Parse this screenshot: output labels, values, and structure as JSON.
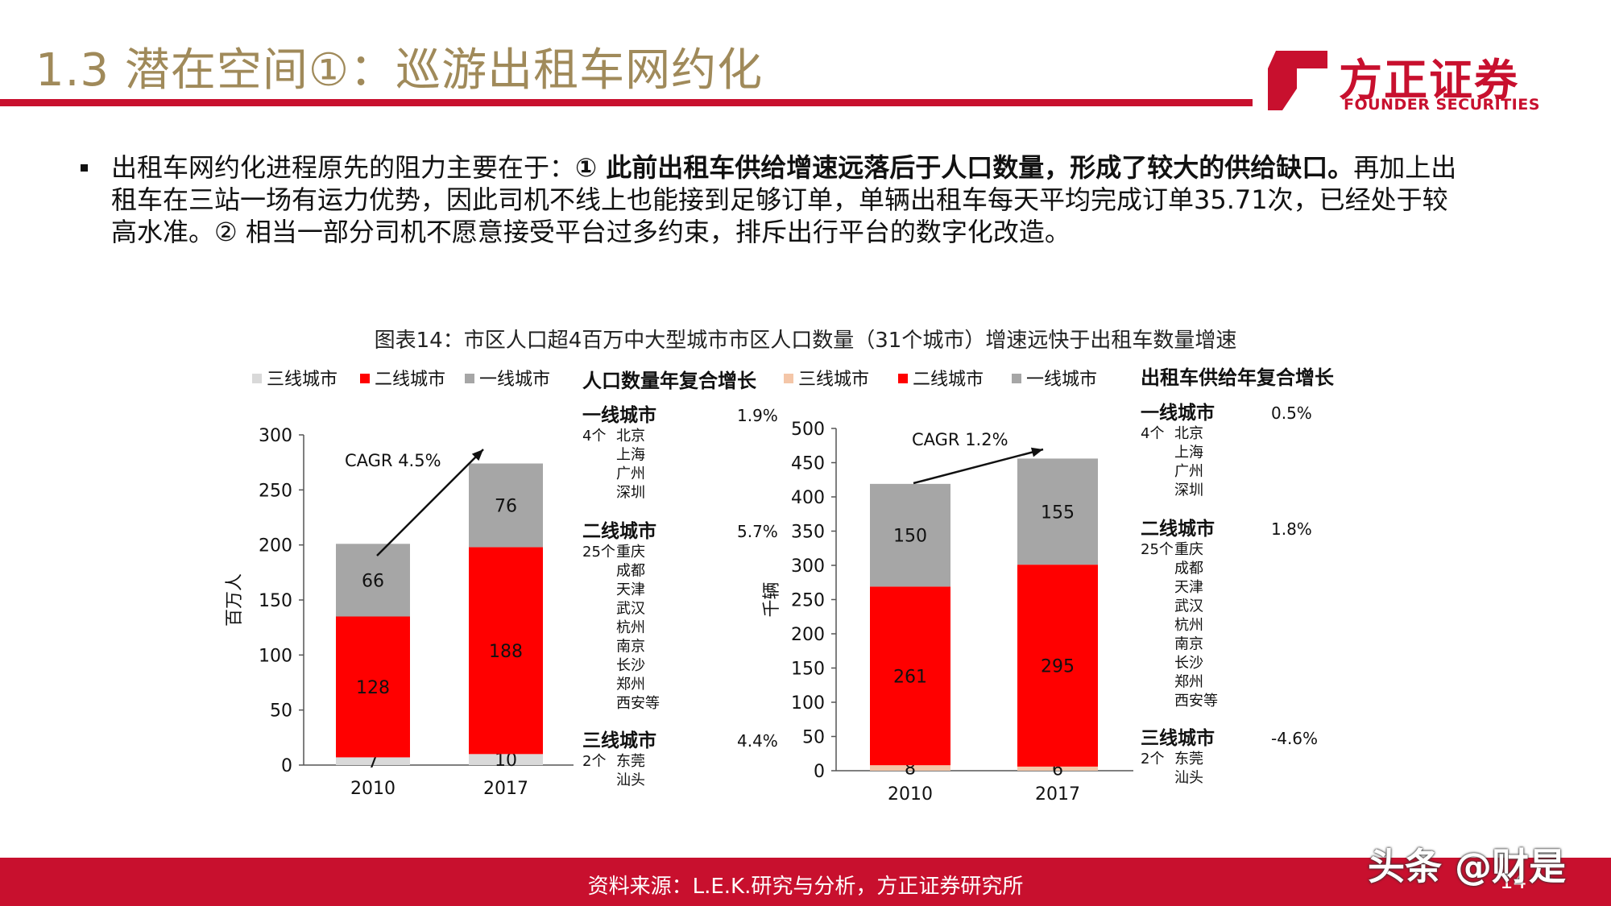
{
  "header": {
    "title": "1.3 潜在空间①：巡游出租车网约化",
    "logo_cn": "方正证券",
    "logo_en": "FOUNDER SECURITIES"
  },
  "bullet": {
    "part1": "出租车网约化进程原先的阻力主要在于：",
    "bold": "① 此前出租车供给增速远落后于人口数量，形成了较大的供给缺口。",
    "part2": "再加上出租车在三站一场有运力优势，因此司机不线上也能接到足够订单，单辆出租车每天平均完成订单35.71次，已经处于较高水准。② 相当一部分司机不愿意接受平台过多约束，排斥出行平台的数字化改造。"
  },
  "figure_title": "图表14：市区人口超4百万中大型城市市区人口数量（31个城市）增速远快于出租车数量增速",
  "colors": {
    "tier3_left": "#d9d9d9",
    "tier3_right": "#f4c6a8",
    "tier2": "#ff0000",
    "tier1": "#a6a6a6",
    "brand_red": "#c8102e"
  },
  "chart_data": [
    {
      "type": "bar",
      "stacked": true,
      "categories": [
        "2010",
        "2017"
      ],
      "series": [
        {
          "name": "三线城市",
          "values": [
            7,
            10
          ]
        },
        {
          "name": "二线城市",
          "values": [
            128,
            188
          ]
        },
        {
          "name": "一线城市",
          "values": [
            66,
            76
          ]
        }
      ],
      "ylabel": "百万人",
      "ylim": [
        0,
        300
      ],
      "yticks": [
        0,
        50,
        100,
        150,
        200,
        250,
        300
      ],
      "legend": [
        "三线城市",
        "二线城市",
        "一线城市"
      ],
      "legend_placement": "top",
      "annotation": "CAGR 4.5%",
      "grid": false,
      "side_table": {
        "title": "人口数量年复合增长",
        "groups": [
          {
            "tier": "一线城市",
            "rate": "1.9%",
            "count": "4个",
            "cities": [
              "北京",
              "上海",
              "广州",
              "深圳"
            ]
          },
          {
            "tier": "二线城市",
            "rate": "5.7%",
            "count": "25个",
            "cities": [
              "重庆",
              "成都",
              "天津",
              "武汉",
              "杭州",
              "南京",
              "长沙",
              "郑州",
              "西安等"
            ]
          },
          {
            "tier": "三线城市",
            "rate": "4.4%",
            "count": "2个",
            "cities": [
              "东莞",
              "汕头"
            ]
          }
        ]
      }
    },
    {
      "type": "bar",
      "stacked": true,
      "categories": [
        "2010",
        "2017"
      ],
      "series": [
        {
          "name": "三线城市",
          "values": [
            8,
            6
          ]
        },
        {
          "name": "二线城市",
          "values": [
            261,
            295
          ]
        },
        {
          "name": "一线城市",
          "values": [
            150,
            155
          ]
        }
      ],
      "ylabel": "千辆",
      "ylim": [
        0,
        500
      ],
      "yticks": [
        0,
        50,
        100,
        150,
        200,
        250,
        300,
        350,
        400,
        450,
        500
      ],
      "legend": [
        "三线城市",
        "二线城市",
        "一线城市"
      ],
      "legend_placement": "top",
      "annotation": "CAGR 1.2%",
      "grid": false,
      "side_table": {
        "title": "出租车供给年复合增长",
        "groups": [
          {
            "tier": "一线城市",
            "rate": "0.5%",
            "count": "4个",
            "cities": [
              "北京",
              "上海",
              "广州",
              "深圳"
            ]
          },
          {
            "tier": "二线城市",
            "rate": "1.8%",
            "count": "25个",
            "cities": [
              "重庆",
              "成都",
              "天津",
              "武汉",
              "杭州",
              "南京",
              "长沙",
              "郑州",
              "西安等"
            ]
          },
          {
            "tier": "三线城市",
            "rate": "-4.6%",
            "count": "2个",
            "cities": [
              "东莞",
              "汕头"
            ]
          }
        ]
      }
    }
  ],
  "footer": {
    "source": "资料来源：L.E.K.研究与分析，方正证券研究所",
    "page": "14",
    "watermark": "头条 @财是"
  }
}
